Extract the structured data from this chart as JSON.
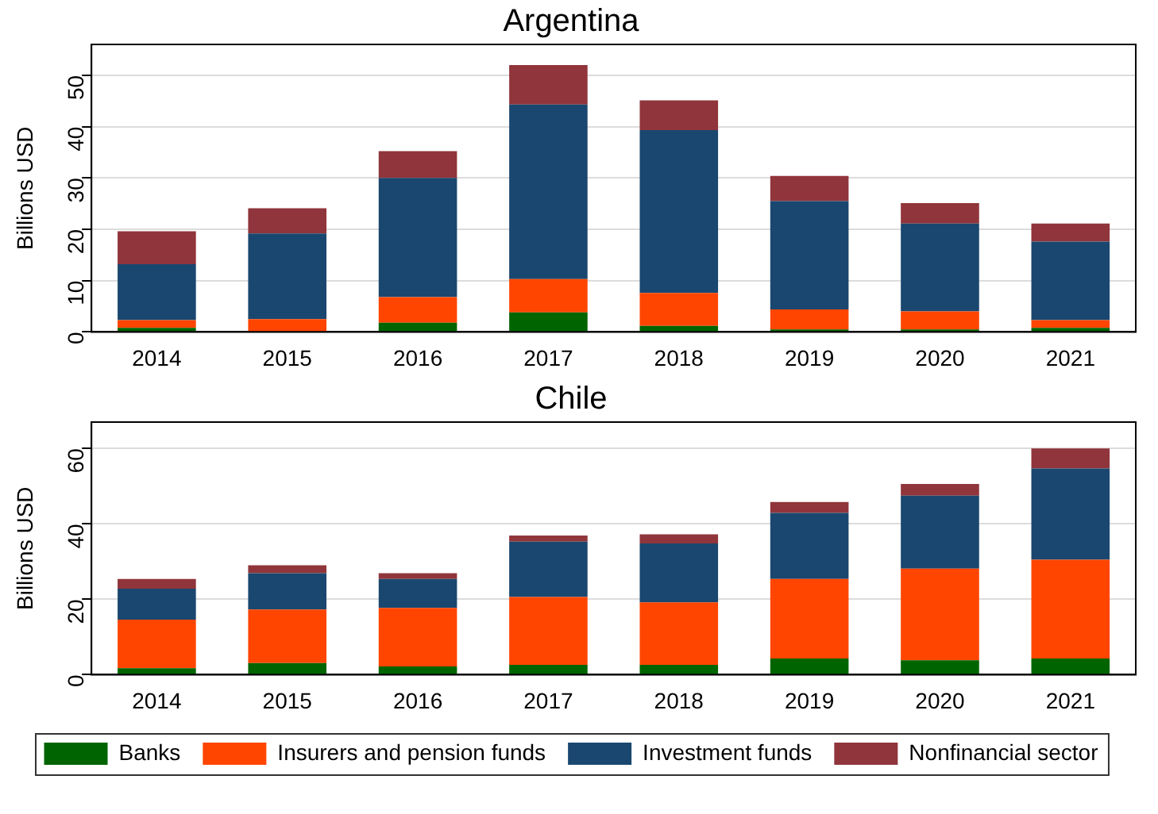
{
  "chart_data": [
    {
      "type": "bar",
      "title": "Argentina",
      "ylabel": "Billions USD",
      "stacked": true,
      "grid": "y",
      "legend": false,
      "categories": [
        "2014",
        "2015",
        "2016",
        "2017",
        "2018",
        "2019",
        "2020",
        "2021"
      ],
      "ylim": [
        0,
        56
      ],
      "yticks": [
        0,
        10,
        20,
        30,
        40,
        50
      ],
      "series": [
        {
          "color": "#006400",
          "values": [
            0.8,
            null,
            1.8,
            3.8,
            1.2,
            0.5,
            0.5,
            0.8
          ]
        },
        {
          "color": "#ff4500",
          "values": [
            1.5,
            2.5,
            5.0,
            6.5,
            6.4,
            3.9,
            3.5,
            1.5
          ]
        },
        {
          "color": "#1a476f",
          "values": [
            10.9,
            16.7,
            23.2,
            34.0,
            31.7,
            21.1,
            17.1,
            15.3
          ]
        },
        {
          "color": "#90353b",
          "values": [
            6.4,
            4.9,
            5.2,
            7.7,
            5.8,
            4.9,
            4.0,
            3.5
          ]
        }
      ]
    },
    {
      "type": "bar",
      "title": "Chile",
      "ylabel": "Billions USD",
      "stacked": true,
      "grid": "y",
      "legend": "bottom",
      "categories": [
        "2014",
        "2015",
        "2016",
        "2017",
        "2018",
        "2019",
        "2020",
        "2021"
      ],
      "ylim": [
        0,
        67
      ],
      "yticks": [
        0,
        20,
        40,
        60
      ],
      "series": [
        {
          "name": "Banks",
          "color": "#006400",
          "values": [
            1.7,
            3.1,
            2.2,
            2.6,
            2.6,
            4.3,
            3.8,
            4.3
          ]
        },
        {
          "name": "Insurers and pension funds",
          "color": "#ff4500",
          "values": [
            12.9,
            14.2,
            15.5,
            18.0,
            16.6,
            21.1,
            24.3,
            26.2
          ]
        },
        {
          "name": "Investment funds",
          "color": "#1a476f",
          "values": [
            8.2,
            9.6,
            7.7,
            14.7,
            15.6,
            17.5,
            19.4,
            24.2
          ]
        },
        {
          "name": "Nonfinancial sector",
          "color": "#90353b",
          "values": [
            2.6,
            2.1,
            1.5,
            1.6,
            2.4,
            2.9,
            3.1,
            5.3
          ]
        }
      ]
    }
  ]
}
